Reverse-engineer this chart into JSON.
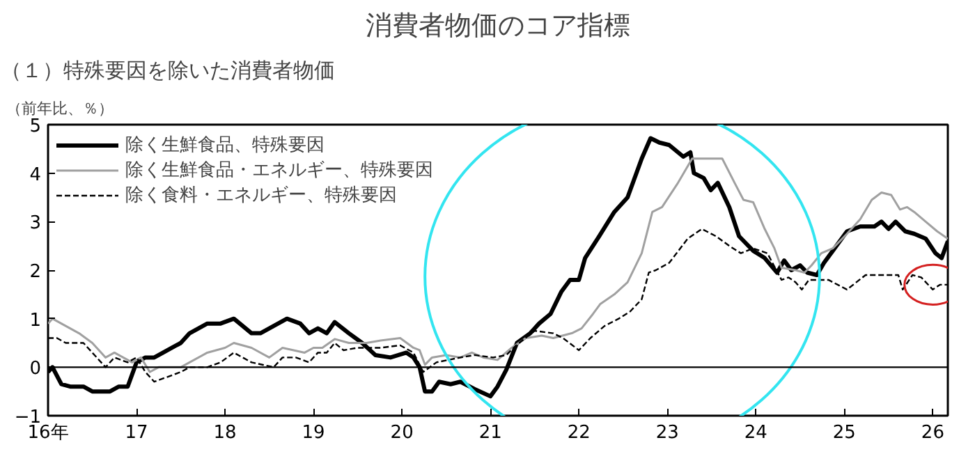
{
  "chart_data": {
    "type": "line",
    "title": "消費者物価のコア指標",
    "subtitle": "（１）特殊要因を除いた消費者物価",
    "ylabel": "（前年比、％）",
    "xlim": [
      16,
      26.17
    ],
    "ylim": [
      -1,
      5
    ],
    "xticks": [
      {
        "value": 16,
        "label": "16年"
      },
      17,
      18,
      19,
      20,
      21,
      22,
      23,
      24,
      25,
      26
    ],
    "yticks": [
      -1,
      0,
      1,
      2,
      3,
      4,
      5
    ],
    "grid": false,
    "legend": "top left",
    "ref_lines": [
      {
        "axis": "y",
        "value": 0,
        "color": "#000000"
      }
    ],
    "series": [
      {
        "name": "除く生鮮食品、特殊要因",
        "color": "#000000",
        "line_style": "solid",
        "x": [
          16.0,
          16.05,
          16.15,
          16.25,
          16.4,
          16.5,
          16.7,
          16.8,
          16.9,
          17.0,
          17.1,
          17.2,
          17.4,
          17.5,
          17.6,
          17.8,
          17.95,
          18.1,
          18.3,
          18.4,
          18.5,
          18.6,
          18.7,
          18.85,
          18.95,
          19.05,
          19.15,
          19.24,
          19.4,
          19.55,
          19.7,
          19.87,
          20.05,
          20.13,
          20.2,
          20.26,
          20.34,
          20.42,
          20.55,
          20.66,
          20.82,
          21.0,
          21.08,
          21.18,
          21.3,
          21.45,
          21.55,
          21.68,
          21.8,
          21.9,
          22.0,
          22.07,
          22.23,
          22.4,
          22.55,
          22.71,
          22.81,
          22.91,
          23.02,
          23.18,
          23.26,
          23.3,
          23.41,
          23.49,
          23.57,
          23.7,
          23.81,
          23.97,
          24.1,
          24.24,
          24.32,
          24.4,
          24.5,
          24.58,
          24.69,
          24.77,
          24.87,
          25.03,
          25.18,
          25.34,
          25.42,
          25.5,
          25.58,
          25.69,
          25.79,
          25.92,
          26.03,
          26.1,
          26.17
        ],
        "values": [
          -0.1,
          0.0,
          -0.35,
          -0.4,
          -0.4,
          -0.5,
          -0.5,
          -0.4,
          -0.4,
          0.1,
          0.2,
          0.2,
          0.4,
          0.5,
          0.7,
          0.9,
          0.9,
          1.0,
          0.7,
          0.7,
          0.8,
          0.9,
          1.0,
          0.9,
          0.7,
          0.8,
          0.7,
          0.93,
          0.7,
          0.5,
          0.25,
          0.2,
          0.3,
          0.2,
          0.0,
          -0.5,
          -0.5,
          -0.3,
          -0.35,
          -0.3,
          -0.45,
          -0.6,
          -0.4,
          -0.05,
          0.5,
          0.7,
          0.9,
          1.1,
          1.55,
          1.8,
          1.8,
          2.25,
          2.7,
          3.2,
          3.5,
          4.3,
          4.72,
          4.63,
          4.58,
          4.34,
          4.43,
          4.0,
          3.9,
          3.65,
          3.8,
          3.3,
          2.7,
          2.4,
          2.25,
          1.95,
          2.2,
          2.0,
          2.1,
          1.95,
          1.9,
          2.15,
          2.4,
          2.8,
          2.9,
          2.9,
          3.0,
          2.85,
          3.0,
          2.8,
          2.75,
          2.65,
          2.35,
          2.25,
          2.6
        ]
      },
      {
        "name": "除く生鮮食品・エネルギー、特殊要因",
        "color": "#a0a0a0",
        "line_style": "solid",
        "x": [
          16.0,
          16.05,
          16.2,
          16.35,
          16.5,
          16.65,
          16.75,
          16.95,
          17.05,
          17.15,
          17.25,
          17.5,
          17.6,
          17.8,
          18.0,
          18.1,
          18.3,
          18.5,
          18.65,
          18.9,
          19.0,
          19.1,
          19.24,
          19.4,
          19.6,
          19.76,
          19.98,
          20.13,
          20.2,
          20.26,
          20.34,
          20.5,
          20.66,
          20.79,
          20.92,
          21.08,
          21.24,
          21.4,
          21.58,
          21.71,
          21.92,
          22.03,
          22.16,
          22.24,
          22.4,
          22.55,
          22.71,
          22.83,
          22.94,
          23.12,
          23.28,
          23.62,
          23.76,
          23.86,
          23.97,
          24.1,
          24.21,
          24.29,
          24.45,
          24.55,
          24.63,
          24.74,
          24.87,
          25.03,
          25.18,
          25.31,
          25.42,
          25.53,
          25.63,
          25.71,
          25.79,
          25.92,
          26.05,
          26.17
        ],
        "values": [
          0.9,
          1.0,
          0.85,
          0.7,
          0.5,
          0.2,
          0.3,
          0.1,
          0.2,
          -0.1,
          0.0,
          0.0,
          0.1,
          0.3,
          0.4,
          0.5,
          0.4,
          0.2,
          0.4,
          0.3,
          0.4,
          0.4,
          0.58,
          0.5,
          0.5,
          0.55,
          0.6,
          0.4,
          0.35,
          0.05,
          0.2,
          0.25,
          0.2,
          0.3,
          0.2,
          0.15,
          0.4,
          0.6,
          0.65,
          0.6,
          0.7,
          0.8,
          1.1,
          1.3,
          1.5,
          1.75,
          2.35,
          3.2,
          3.3,
          3.8,
          4.3,
          4.3,
          3.8,
          3.45,
          3.4,
          2.85,
          2.45,
          2.05,
          2.0,
          1.95,
          2.1,
          2.35,
          2.45,
          2.75,
          3.05,
          3.45,
          3.6,
          3.55,
          3.25,
          3.3,
          3.2,
          3.0,
          2.8,
          2.65
        ]
      },
      {
        "name": "除く食料・エネルギー、特殊要因",
        "color": "#000000",
        "line_style": "dashed",
        "x": [
          16.0,
          16.1,
          16.2,
          16.4,
          16.5,
          16.65,
          16.75,
          16.9,
          17.0,
          17.1,
          17.2,
          17.35,
          17.5,
          17.6,
          17.8,
          17.95,
          18.1,
          18.3,
          18.55,
          18.65,
          18.8,
          18.95,
          19.05,
          19.15,
          19.24,
          19.34,
          19.5,
          19.76,
          19.98,
          20.13,
          20.24,
          20.39,
          20.66,
          20.82,
          21.03,
          21.18,
          21.29,
          21.5,
          21.71,
          21.82,
          22.0,
          22.13,
          22.29,
          22.45,
          22.58,
          22.71,
          22.79,
          22.87,
          23.02,
          23.23,
          23.39,
          23.55,
          23.7,
          23.83,
          23.97,
          24.13,
          24.29,
          24.37,
          24.45,
          24.52,
          24.6,
          24.82,
          25.03,
          25.24,
          25.61,
          25.66,
          25.77,
          25.87,
          26.0,
          26.08,
          26.17
        ],
        "values": [
          0.6,
          0.6,
          0.5,
          0.5,
          0.3,
          0.0,
          0.2,
          0.1,
          0.2,
          -0.1,
          -0.3,
          -0.2,
          -0.1,
          0.0,
          0.0,
          0.1,
          0.3,
          0.1,
          0.0,
          0.2,
          0.2,
          0.1,
          0.3,
          0.3,
          0.5,
          0.35,
          0.4,
          0.4,
          0.45,
          0.3,
          -0.1,
          0.1,
          0.2,
          0.25,
          0.2,
          0.25,
          0.45,
          0.75,
          0.7,
          0.6,
          0.35,
          0.6,
          0.85,
          1.0,
          1.15,
          1.4,
          1.95,
          2.0,
          2.15,
          2.65,
          2.85,
          2.7,
          2.5,
          2.35,
          2.45,
          2.35,
          1.8,
          1.85,
          1.75,
          1.6,
          1.8,
          1.8,
          1.6,
          1.9,
          1.9,
          1.6,
          1.9,
          1.85,
          1.6,
          1.7,
          1.7
        ]
      }
    ]
  }
}
